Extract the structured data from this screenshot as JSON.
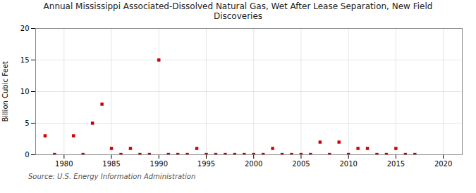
{
  "chart_data": {
    "type": "scatter",
    "title": "Annual Mississippi Associated-Dissolved Natural Gas, Wet After Lease Separation, New Field\nDiscoveries",
    "ylabel": "Billion Cubic Feet",
    "source": "Source: U.S. Energy Information Administration",
    "color": "#cc0000",
    "marker": "square",
    "grid": true,
    "xlim": [
      1977,
      2022
    ],
    "ylim": [
      0,
      20
    ],
    "xticks": [
      1980,
      1985,
      1990,
      1995,
      2000,
      2005,
      2010,
      2015,
      2020
    ],
    "yticks": [
      0,
      5,
      10,
      15,
      20
    ],
    "x": [
      1978,
      1979,
      1981,
      1982,
      1983,
      1984,
      1985,
      1986,
      1987,
      1988,
      1989,
      1990,
      1991,
      1992,
      1993,
      1994,
      1995,
      1996,
      1997,
      1998,
      1999,
      2000,
      2001,
      2002,
      2003,
      2004,
      2005,
      2006,
      2007,
      2008,
      2009,
      2010,
      2011,
      2012,
      2013,
      2014,
      2015,
      2016,
      2017
    ],
    "values": [
      3.0,
      0.05,
      3.0,
      0.05,
      5.0,
      8.0,
      1.0,
      0.05,
      1.0,
      0.05,
      0.05,
      15.0,
      0.05,
      0.05,
      0.05,
      1.0,
      0.05,
      0.05,
      0.05,
      0.05,
      0.05,
      0.05,
      0.05,
      1.0,
      0.05,
      0.05,
      0.05,
      0.05,
      2.0,
      0.05,
      2.0,
      0.05,
      1.0,
      1.0,
      0.05,
      0.05,
      1.0,
      0.05,
      0.05
    ]
  }
}
